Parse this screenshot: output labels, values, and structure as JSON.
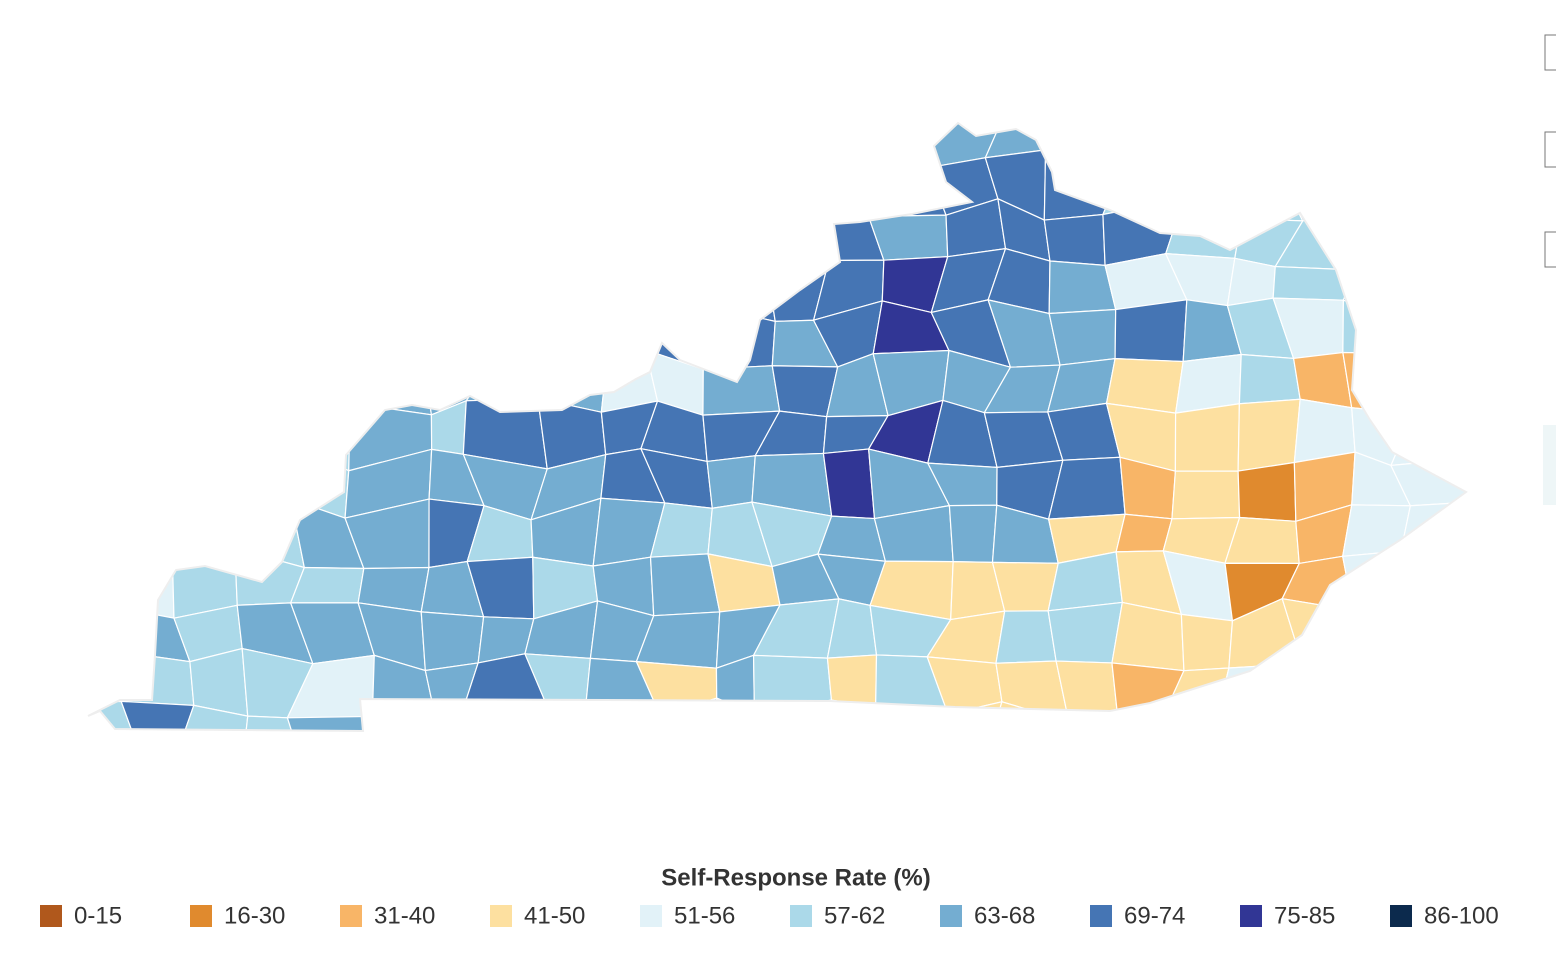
{
  "legend": {
    "title": "Self-Response Rate (%)",
    "items": [
      {
        "label": "0-15",
        "color": "#b0581c"
      },
      {
        "label": "16-30",
        "color": "#e08a2e"
      },
      {
        "label": "31-40",
        "color": "#f8b567"
      },
      {
        "label": "41-50",
        "color": "#fde0a0"
      },
      {
        "label": "51-56",
        "color": "#e2f2f8"
      },
      {
        "label": "57-62",
        "color": "#abd9e9"
      },
      {
        "label": "63-68",
        "color": "#74add1"
      },
      {
        "label": "69-74",
        "color": "#4575b4"
      },
      {
        "label": "75-85",
        "color": "#313695"
      },
      {
        "label": "86-100",
        "color": "#0c2a4d"
      }
    ]
  }
}
